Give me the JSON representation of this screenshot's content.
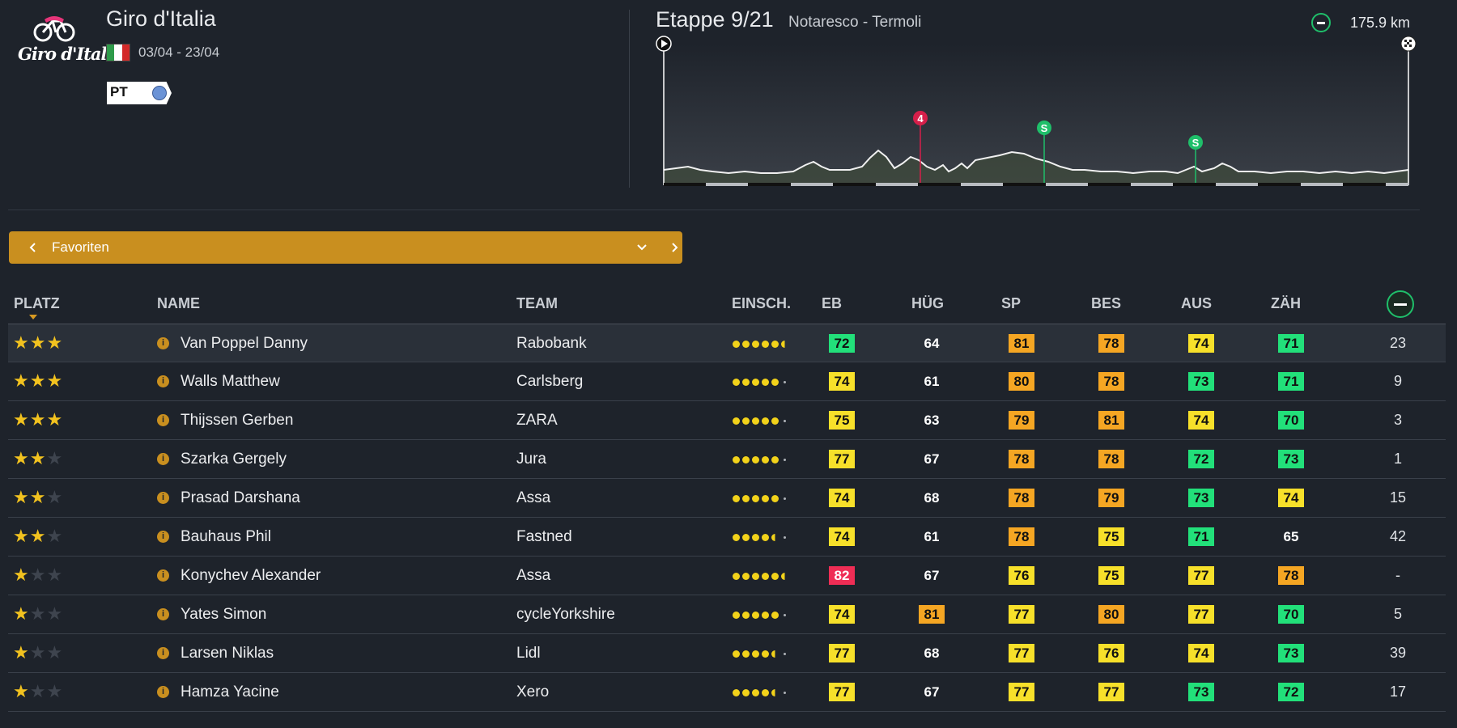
{
  "race": {
    "logo_text": "Giro d'Italia",
    "title": "Giro d'Italia",
    "dates": "03/04 - 23/04",
    "flag_colors": [
      "#2e9b4a",
      "#ffffff",
      "#d32a2a"
    ],
    "class_badge": "PT",
    "class_badge_color": "#6b93d6"
  },
  "stage": {
    "title": "Etappe 9/21",
    "route": "Notaresco - Termoli",
    "distance": "175.9 km",
    "markers": [
      {
        "label": "4",
        "type": "climb",
        "color": "#d61f4a"
      },
      {
        "label": "S",
        "type": "sprint",
        "color": "#1fbf6a"
      },
      {
        "label": "S",
        "type": "sprint",
        "color": "#1fbf6a"
      }
    ]
  },
  "favorites_bar": {
    "label": "Favoriten",
    "color": "#c98f1f"
  },
  "table": {
    "columns": {
      "rank": "PLATZ",
      "name": "NAME",
      "team": "TEAM",
      "form": "EINSCH.",
      "flat": "EB",
      "hill": "HÜG",
      "sprint": "SP",
      "accel": "BES",
      "endurance": "AUS",
      "resistance": "ZÄH"
    },
    "stat_colors": {
      "green": "#22e07a",
      "yellow": "#f7e02a",
      "orange": "#f5a623",
      "red": "#ef2d55"
    },
    "rows": [
      {
        "stars": 3,
        "name": "Van Poppel Danny",
        "team": "Rabobank",
        "form": [
          1,
          1,
          1,
          1,
          1,
          "h"
        ],
        "eb": {
          "v": "72",
          "c": "green"
        },
        "hug": {
          "v": "64",
          "c": "plain"
        },
        "sp": {
          "v": "81",
          "c": "orange"
        },
        "bes": {
          "v": "78",
          "c": "orange"
        },
        "aus": {
          "v": "74",
          "c": "yellow"
        },
        "zah": {
          "v": "71",
          "c": "green"
        },
        "total": "23"
      },
      {
        "stars": 3,
        "name": "Walls Matthew",
        "team": "Carlsberg",
        "form": [
          1,
          1,
          1,
          1,
          1,
          0
        ],
        "eb": {
          "v": "74",
          "c": "yellow"
        },
        "hug": {
          "v": "61",
          "c": "plain"
        },
        "sp": {
          "v": "80",
          "c": "orange"
        },
        "bes": {
          "v": "78",
          "c": "orange"
        },
        "aus": {
          "v": "73",
          "c": "green"
        },
        "zah": {
          "v": "71",
          "c": "green"
        },
        "total": "9"
      },
      {
        "stars": 3,
        "name": "Thijssen Gerben",
        "team": "ZARA",
        "form": [
          1,
          1,
          1,
          1,
          1,
          0
        ],
        "eb": {
          "v": "75",
          "c": "yellow"
        },
        "hug": {
          "v": "63",
          "c": "plain"
        },
        "sp": {
          "v": "79",
          "c": "orange"
        },
        "bes": {
          "v": "81",
          "c": "orange"
        },
        "aus": {
          "v": "74",
          "c": "yellow"
        },
        "zah": {
          "v": "70",
          "c": "green"
        },
        "total": "3"
      },
      {
        "stars": 2,
        "name": "Szarka Gergely",
        "team": "Jura",
        "form": [
          1,
          1,
          1,
          1,
          1,
          0
        ],
        "eb": {
          "v": "77",
          "c": "yellow"
        },
        "hug": {
          "v": "67",
          "c": "plain"
        },
        "sp": {
          "v": "78",
          "c": "orange"
        },
        "bes": {
          "v": "78",
          "c": "orange"
        },
        "aus": {
          "v": "72",
          "c": "green"
        },
        "zah": {
          "v": "73",
          "c": "green"
        },
        "total": "1"
      },
      {
        "stars": 2,
        "name": "Prasad Darshana",
        "team": "Assa",
        "form": [
          1,
          1,
          1,
          1,
          1,
          0
        ],
        "eb": {
          "v": "74",
          "c": "yellow"
        },
        "hug": {
          "v": "68",
          "c": "plain"
        },
        "sp": {
          "v": "78",
          "c": "orange"
        },
        "bes": {
          "v": "79",
          "c": "orange"
        },
        "aus": {
          "v": "73",
          "c": "green"
        },
        "zah": {
          "v": "74",
          "c": "yellow"
        },
        "total": "15"
      },
      {
        "stars": 2,
        "name": "Bauhaus Phil",
        "team": "Fastned",
        "form": [
          1,
          1,
          1,
          1,
          "h",
          0
        ],
        "eb": {
          "v": "74",
          "c": "yellow"
        },
        "hug": {
          "v": "61",
          "c": "plain"
        },
        "sp": {
          "v": "78",
          "c": "orange"
        },
        "bes": {
          "v": "75",
          "c": "yellow"
        },
        "aus": {
          "v": "71",
          "c": "green"
        },
        "zah": {
          "v": "65",
          "c": "plain"
        },
        "total": "42"
      },
      {
        "stars": 1,
        "name": "Konychev Alexander",
        "team": "Assa",
        "form": [
          1,
          1,
          1,
          1,
          1,
          "h"
        ],
        "eb": {
          "v": "82",
          "c": "red"
        },
        "hug": {
          "v": "67",
          "c": "plain"
        },
        "sp": {
          "v": "76",
          "c": "yellow"
        },
        "bes": {
          "v": "75",
          "c": "yellow"
        },
        "aus": {
          "v": "77",
          "c": "yellow"
        },
        "zah": {
          "v": "78",
          "c": "orange"
        },
        "total": "-"
      },
      {
        "stars": 1,
        "name": "Yates Simon",
        "team": "cycleYorkshire",
        "form": [
          1,
          1,
          1,
          1,
          1,
          0
        ],
        "eb": {
          "v": "74",
          "c": "yellow"
        },
        "hug": {
          "v": "81",
          "c": "orange"
        },
        "sp": {
          "v": "77",
          "c": "yellow"
        },
        "bes": {
          "v": "80",
          "c": "orange"
        },
        "aus": {
          "v": "77",
          "c": "yellow"
        },
        "zah": {
          "v": "70",
          "c": "green"
        },
        "total": "5"
      },
      {
        "stars": 1,
        "name": "Larsen Niklas",
        "team": "Lidl",
        "form": [
          1,
          1,
          1,
          1,
          "h",
          0
        ],
        "eb": {
          "v": "77",
          "c": "yellow"
        },
        "hug": {
          "v": "68",
          "c": "plain"
        },
        "sp": {
          "v": "77",
          "c": "yellow"
        },
        "bes": {
          "v": "76",
          "c": "yellow"
        },
        "aus": {
          "v": "74",
          "c": "yellow"
        },
        "zah": {
          "v": "73",
          "c": "green"
        },
        "total": "39"
      },
      {
        "stars": 1,
        "name": "Hamza Yacine",
        "team": "Xero",
        "form": [
          1,
          1,
          1,
          1,
          "h",
          0
        ],
        "eb": {
          "v": "77",
          "c": "yellow"
        },
        "hug": {
          "v": "67",
          "c": "plain"
        },
        "sp": {
          "v": "77",
          "c": "yellow"
        },
        "bes": {
          "v": "77",
          "c": "yellow"
        },
        "aus": {
          "v": "73",
          "c": "green"
        },
        "zah": {
          "v": "72",
          "c": "green"
        },
        "total": "17"
      }
    ]
  }
}
